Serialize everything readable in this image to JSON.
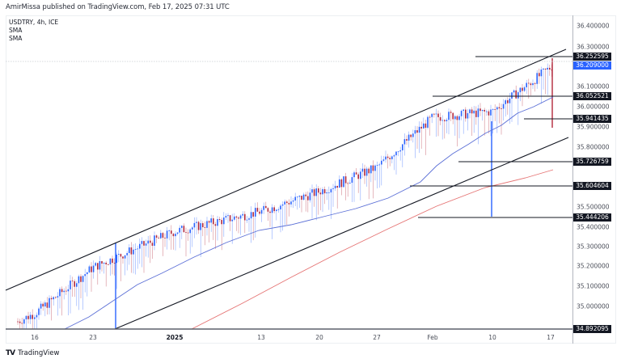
{
  "header": {
    "published_text": "AmirMissa published on TradingView.com, Feb 17, 2025 07:31 UTC"
  },
  "legend": {
    "symbol_line": "USDTRY, 4h, ICE",
    "indicators": [
      "SMA",
      "SMA"
    ]
  },
  "footer": {
    "logo_mark": "TV",
    "logo_text": "TradingView"
  },
  "colors": {
    "up_candle": "#2962ff",
    "down_candle": "#b2283c",
    "sma_fast": "#5b6fd6",
    "sma_slow": "#e57373",
    "trendline": "#131722",
    "badge_bg": "#131722",
    "current_price_bg": "#2962ff"
  },
  "price_axis": {
    "ticks": [
      "36.400000",
      "36.300000",
      "36.100000",
      "36.000000",
      "35.900000",
      "35.800000",
      "35.500000",
      "35.400000",
      "35.300000",
      "35.200000",
      "35.100000",
      "35.000000"
    ],
    "badges": [
      {
        "value": "36.252595",
        "type": "level"
      },
      {
        "value": "36.209000",
        "type": "current"
      },
      {
        "value": "36.052521",
        "type": "level"
      },
      {
        "value": "35.941435",
        "type": "level"
      },
      {
        "value": "35.726759",
        "type": "level"
      },
      {
        "value": "35.604604",
        "type": "level"
      },
      {
        "value": "35.444206",
        "type": "level"
      },
      {
        "value": "34.892095",
        "type": "level"
      }
    ]
  },
  "time_axis": {
    "labels": [
      {
        "text": "16",
        "bold": false
      },
      {
        "text": "23",
        "bold": false
      },
      {
        "text": "2025",
        "bold": true
      },
      {
        "text": "13",
        "bold": false
      },
      {
        "text": "20",
        "bold": false
      },
      {
        "text": "27",
        "bold": false
      },
      {
        "text": "Feb",
        "bold": false
      },
      {
        "text": "10",
        "bold": false
      },
      {
        "text": "17",
        "bold": false
      }
    ]
  },
  "chart_data": {
    "type": "candlestick",
    "title": "USDTRY, 4h, ICE",
    "xlabel": "",
    "ylabel": "",
    "x_tick_labels": [
      "16",
      "23",
      "2025",
      "13",
      "20",
      "27",
      "Feb",
      "10",
      "17"
    ],
    "y_tick_labels": [
      36.4,
      36.3,
      36.1,
      36.0,
      35.9,
      35.8,
      35.5,
      35.4,
      35.3,
      35.2,
      35.1,
      35.0
    ],
    "ylim": [
      34.89,
      36.45
    ],
    "grid": false,
    "last_price": 36.209,
    "horizontal_levels": [
      36.252595,
      36.052521,
      35.941435,
      35.726759,
      35.604604,
      35.444206,
      34.892095
    ],
    "ascending_channel": {
      "upper_line": {
        "start": [
          "Dec 9",
          35.14
        ],
        "end": [
          "Feb 17",
          36.3
        ]
      },
      "lower_line": {
        "start": [
          "Dec 25",
          34.89
        ],
        "end": [
          "Feb 17",
          35.85
        ]
      }
    },
    "series": [
      {
        "name": "USDTRY close (approx.)",
        "x": [
          "16",
          "23",
          "2025",
          "13",
          "20",
          "27",
          "Feb",
          "10",
          "17"
        ],
        "values": [
          34.97,
          35.2,
          35.38,
          35.48,
          35.58,
          35.7,
          35.95,
          35.98,
          36.21
        ]
      },
      {
        "name": "SMA (fast)",
        "x": [
          "16",
          "23",
          "2025",
          "13",
          "20",
          "27",
          "Feb",
          "10",
          "17"
        ],
        "values": [
          34.9,
          35.08,
          35.26,
          35.38,
          35.48,
          35.58,
          35.74,
          35.88,
          36.02
        ]
      },
      {
        "name": "SMA (slow)",
        "x": [
          "2025",
          "13",
          "20",
          "27",
          "Feb",
          "10",
          "17"
        ],
        "values": [
          34.89,
          35.05,
          35.2,
          35.33,
          35.46,
          35.55,
          35.67
        ]
      }
    ]
  }
}
